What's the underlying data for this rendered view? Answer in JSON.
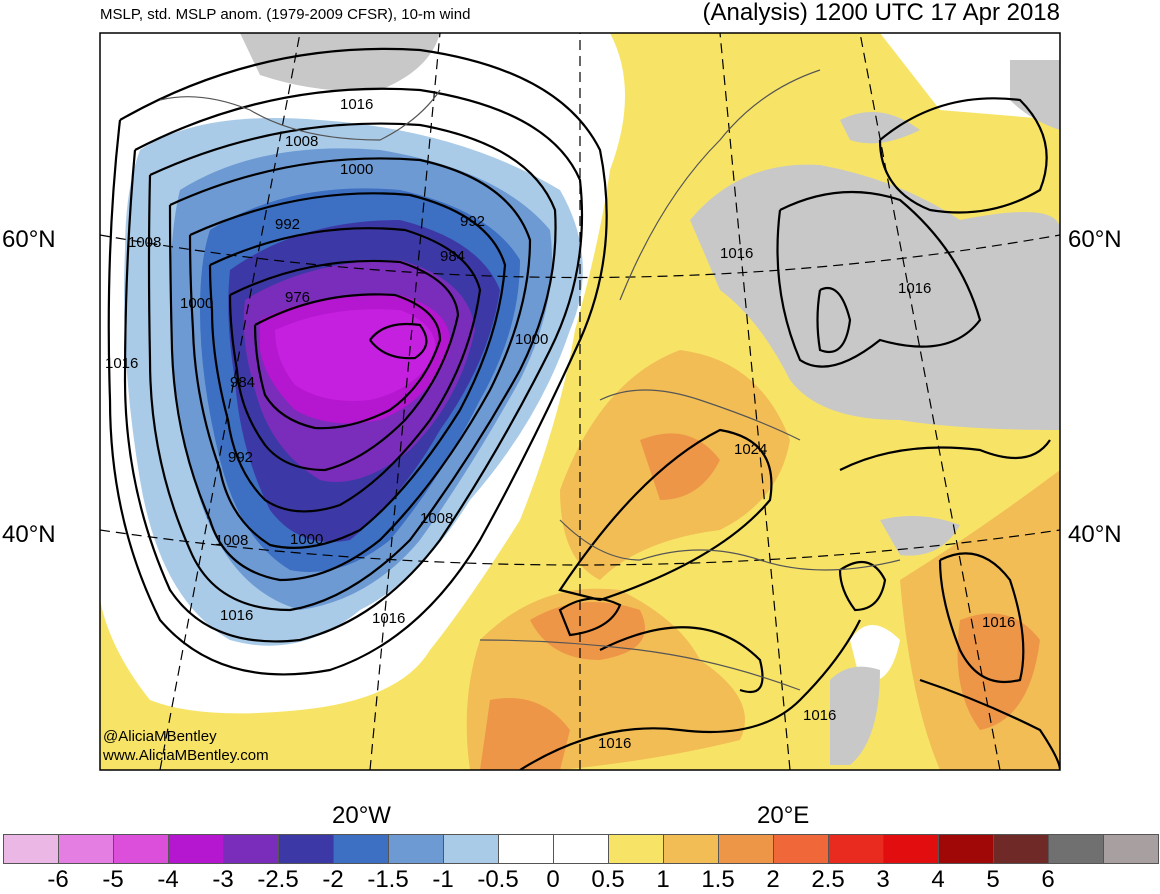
{
  "header": {
    "fields": "MSLP, std. MSLP anom. (1979-2009 CFSR), 10-m wind",
    "valid": "(Analysis) 1200 UTC 17 Apr 2018"
  },
  "lat_labels": [
    "60°N",
    "40°N"
  ],
  "lon_labels": [
    "20°W",
    "20°E"
  ],
  "isobar_labels": [
    "1016",
    "1008",
    "1000",
    "992",
    "992",
    "984",
    "976",
    "1008",
    "1000",
    "1016",
    "1000",
    "984",
    "992",
    "1008",
    "1000",
    "1008",
    "1016",
    "1016",
    "1016",
    "1016",
    "1024",
    "1016",
    "1016",
    "1016"
  ],
  "credit": {
    "handle": "@AliciaMBentley",
    "site": "www.AliciaMBentley.com"
  },
  "colorbar": {
    "colors": [
      "#ebb8e6",
      "#e57ee3",
      "#db4fdb",
      "#b516cf",
      "#7a2dbb",
      "#3c39a6",
      "#3d6fc2",
      "#6e9ad4",
      "#a9cbe8",
      "#ffffff",
      "#ffffff",
      "#f7e467",
      "#f2bd55",
      "#ee9648",
      "#f0683a",
      "#e92a1e",
      "#e20d0e",
      "#a00808",
      "#6f2a28",
      "#707070",
      "#a8a0a0"
    ],
    "tick_labels": [
      "-6",
      "-5",
      "-4",
      "-3",
      "-2.5",
      "-2",
      "-1.5",
      "-1",
      "-0.5",
      "0",
      "0.5",
      "1",
      "1.5",
      "2",
      "2.5",
      "3",
      "4",
      "5",
      "6"
    ]
  },
  "colors": {
    "positive": "#f7e467",
    "land_gray": "#c8c8c8",
    "low_core": "#c51fe0"
  }
}
